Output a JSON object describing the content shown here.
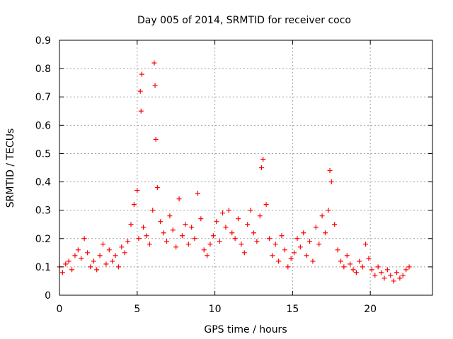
{
  "chart_data": {
    "type": "scatter",
    "title": "Day 005 of 2014, SRMTID for receiver coco",
    "xlabel": "GPS time / hours",
    "ylabel": "SRMTID / TECUs",
    "xlim": [
      0,
      24
    ],
    "ylim": [
      0,
      0.9
    ],
    "x_ticks": [
      0,
      5,
      10,
      15,
      20
    ],
    "x_tick_labels": [
      "0",
      "5",
      "10",
      "15",
      "20"
    ],
    "y_ticks": [
      0,
      0.1,
      0.2,
      0.3,
      0.4,
      0.5,
      0.6,
      0.7,
      0.8,
      0.9
    ],
    "y_tick_labels": [
      "0",
      "0.1",
      "0.2",
      "0.3",
      "0.4",
      "0.5",
      "0.6",
      "0.7",
      "0.8",
      "0.9"
    ],
    "grid": true,
    "marker": "+",
    "series": [
      {
        "name": "SRMTID",
        "color": "#ff0000",
        "x": [
          0.0,
          0.2,
          0.4,
          0.6,
          0.8,
          1.0,
          1.2,
          1.4,
          1.6,
          1.8,
          2.0,
          2.2,
          2.4,
          2.6,
          2.8,
          3.0,
          3.2,
          3.4,
          3.6,
          3.8,
          4.0,
          4.2,
          4.4,
          4.6,
          4.8,
          5.0,
          5.1,
          5.2,
          5.25,
          5.3,
          5.4,
          5.6,
          5.8,
          6.0,
          6.1,
          6.15,
          6.2,
          6.3,
          6.5,
          6.7,
          6.9,
          7.1,
          7.3,
          7.5,
          7.7,
          7.9,
          8.1,
          8.3,
          8.5,
          8.7,
          8.9,
          9.1,
          9.3,
          9.5,
          9.7,
          9.9,
          10.1,
          10.3,
          10.5,
          10.7,
          10.9,
          11.1,
          11.3,
          11.5,
          11.7,
          11.9,
          12.1,
          12.3,
          12.5,
          12.7,
          12.9,
          13.0,
          13.1,
          13.3,
          13.5,
          13.7,
          13.9,
          14.1,
          14.3,
          14.5,
          14.7,
          14.9,
          15.1,
          15.3,
          15.5,
          15.7,
          15.9,
          16.1,
          16.3,
          16.5,
          16.7,
          16.9,
          17.1,
          17.3,
          17.4,
          17.5,
          17.7,
          17.9,
          18.1,
          18.3,
          18.5,
          18.7,
          18.9,
          19.1,
          19.3,
          19.5,
          19.7,
          19.9,
          20.1,
          20.3,
          20.5,
          20.7,
          20.9,
          21.1,
          21.3,
          21.5,
          21.7,
          21.9,
          22.1,
          22.3,
          22.5
        ],
        "y": [
          0.1,
          0.08,
          0.11,
          0.12,
          0.09,
          0.14,
          0.16,
          0.13,
          0.2,
          0.15,
          0.1,
          0.12,
          0.09,
          0.14,
          0.18,
          0.11,
          0.16,
          0.12,
          0.14,
          0.1,
          0.17,
          0.15,
          0.19,
          0.25,
          0.32,
          0.37,
          0.2,
          0.72,
          0.65,
          0.78,
          0.24,
          0.21,
          0.18,
          0.3,
          0.82,
          0.74,
          0.55,
          0.38,
          0.26,
          0.22,
          0.19,
          0.28,
          0.23,
          0.17,
          0.34,
          0.21,
          0.25,
          0.18,
          0.24,
          0.2,
          0.36,
          0.27,
          0.16,
          0.14,
          0.18,
          0.21,
          0.26,
          0.19,
          0.29,
          0.24,
          0.3,
          0.22,
          0.2,
          0.27,
          0.18,
          0.15,
          0.25,
          0.3,
          0.22,
          0.19,
          0.28,
          0.45,
          0.48,
          0.32,
          0.2,
          0.14,
          0.18,
          0.12,
          0.21,
          0.16,
          0.1,
          0.13,
          0.15,
          0.2,
          0.17,
          0.22,
          0.14,
          0.19,
          0.12,
          0.24,
          0.18,
          0.28,
          0.22,
          0.3,
          0.44,
          0.4,
          0.25,
          0.16,
          0.12,
          0.1,
          0.14,
          0.11,
          0.09,
          0.08,
          0.12,
          0.1,
          0.18,
          0.13,
          0.09,
          0.07,
          0.1,
          0.08,
          0.06,
          0.09,
          0.07,
          0.05,
          0.08,
          0.06,
          0.07,
          0.09,
          0.1
        ]
      }
    ]
  }
}
